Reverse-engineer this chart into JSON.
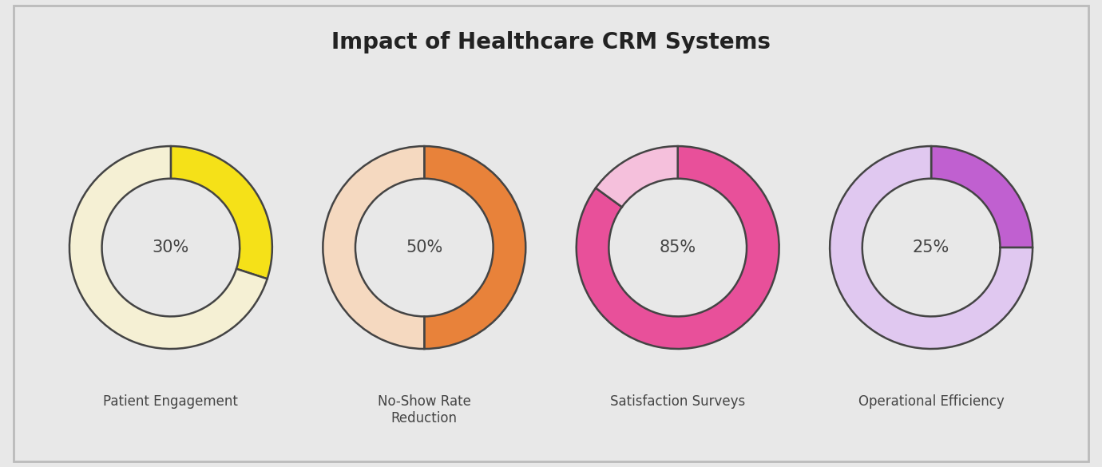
{
  "title": "Impact of Healthcare CRM Systems",
  "title_fontsize": 20,
  "title_fontweight": "bold",
  "background_color": "#e8e8e8",
  "border_color": "#bbbbbb",
  "donut_linewidth": 1.8,
  "donut_edgecolor": "#444444",
  "charts": [
    {
      "label": "Patient Engagement",
      "value": 30,
      "value_color": "#f5e118",
      "remainder_color": "#f5f0d4",
      "center_text": "30%"
    },
    {
      "label": "No-Show Rate\nReduction",
      "value": 50,
      "value_color": "#e8823a",
      "remainder_color": "#f5d9c0",
      "center_text": "50%"
    },
    {
      "label": "Satisfaction Surveys",
      "value": 85,
      "value_color": "#e8509a",
      "remainder_color": "#f5c0dc",
      "center_text": "85%"
    },
    {
      "label": "Operational Efficiency",
      "value": 25,
      "value_color": "#c060d0",
      "remainder_color": "#e0c8f0",
      "center_text": "25%"
    }
  ]
}
